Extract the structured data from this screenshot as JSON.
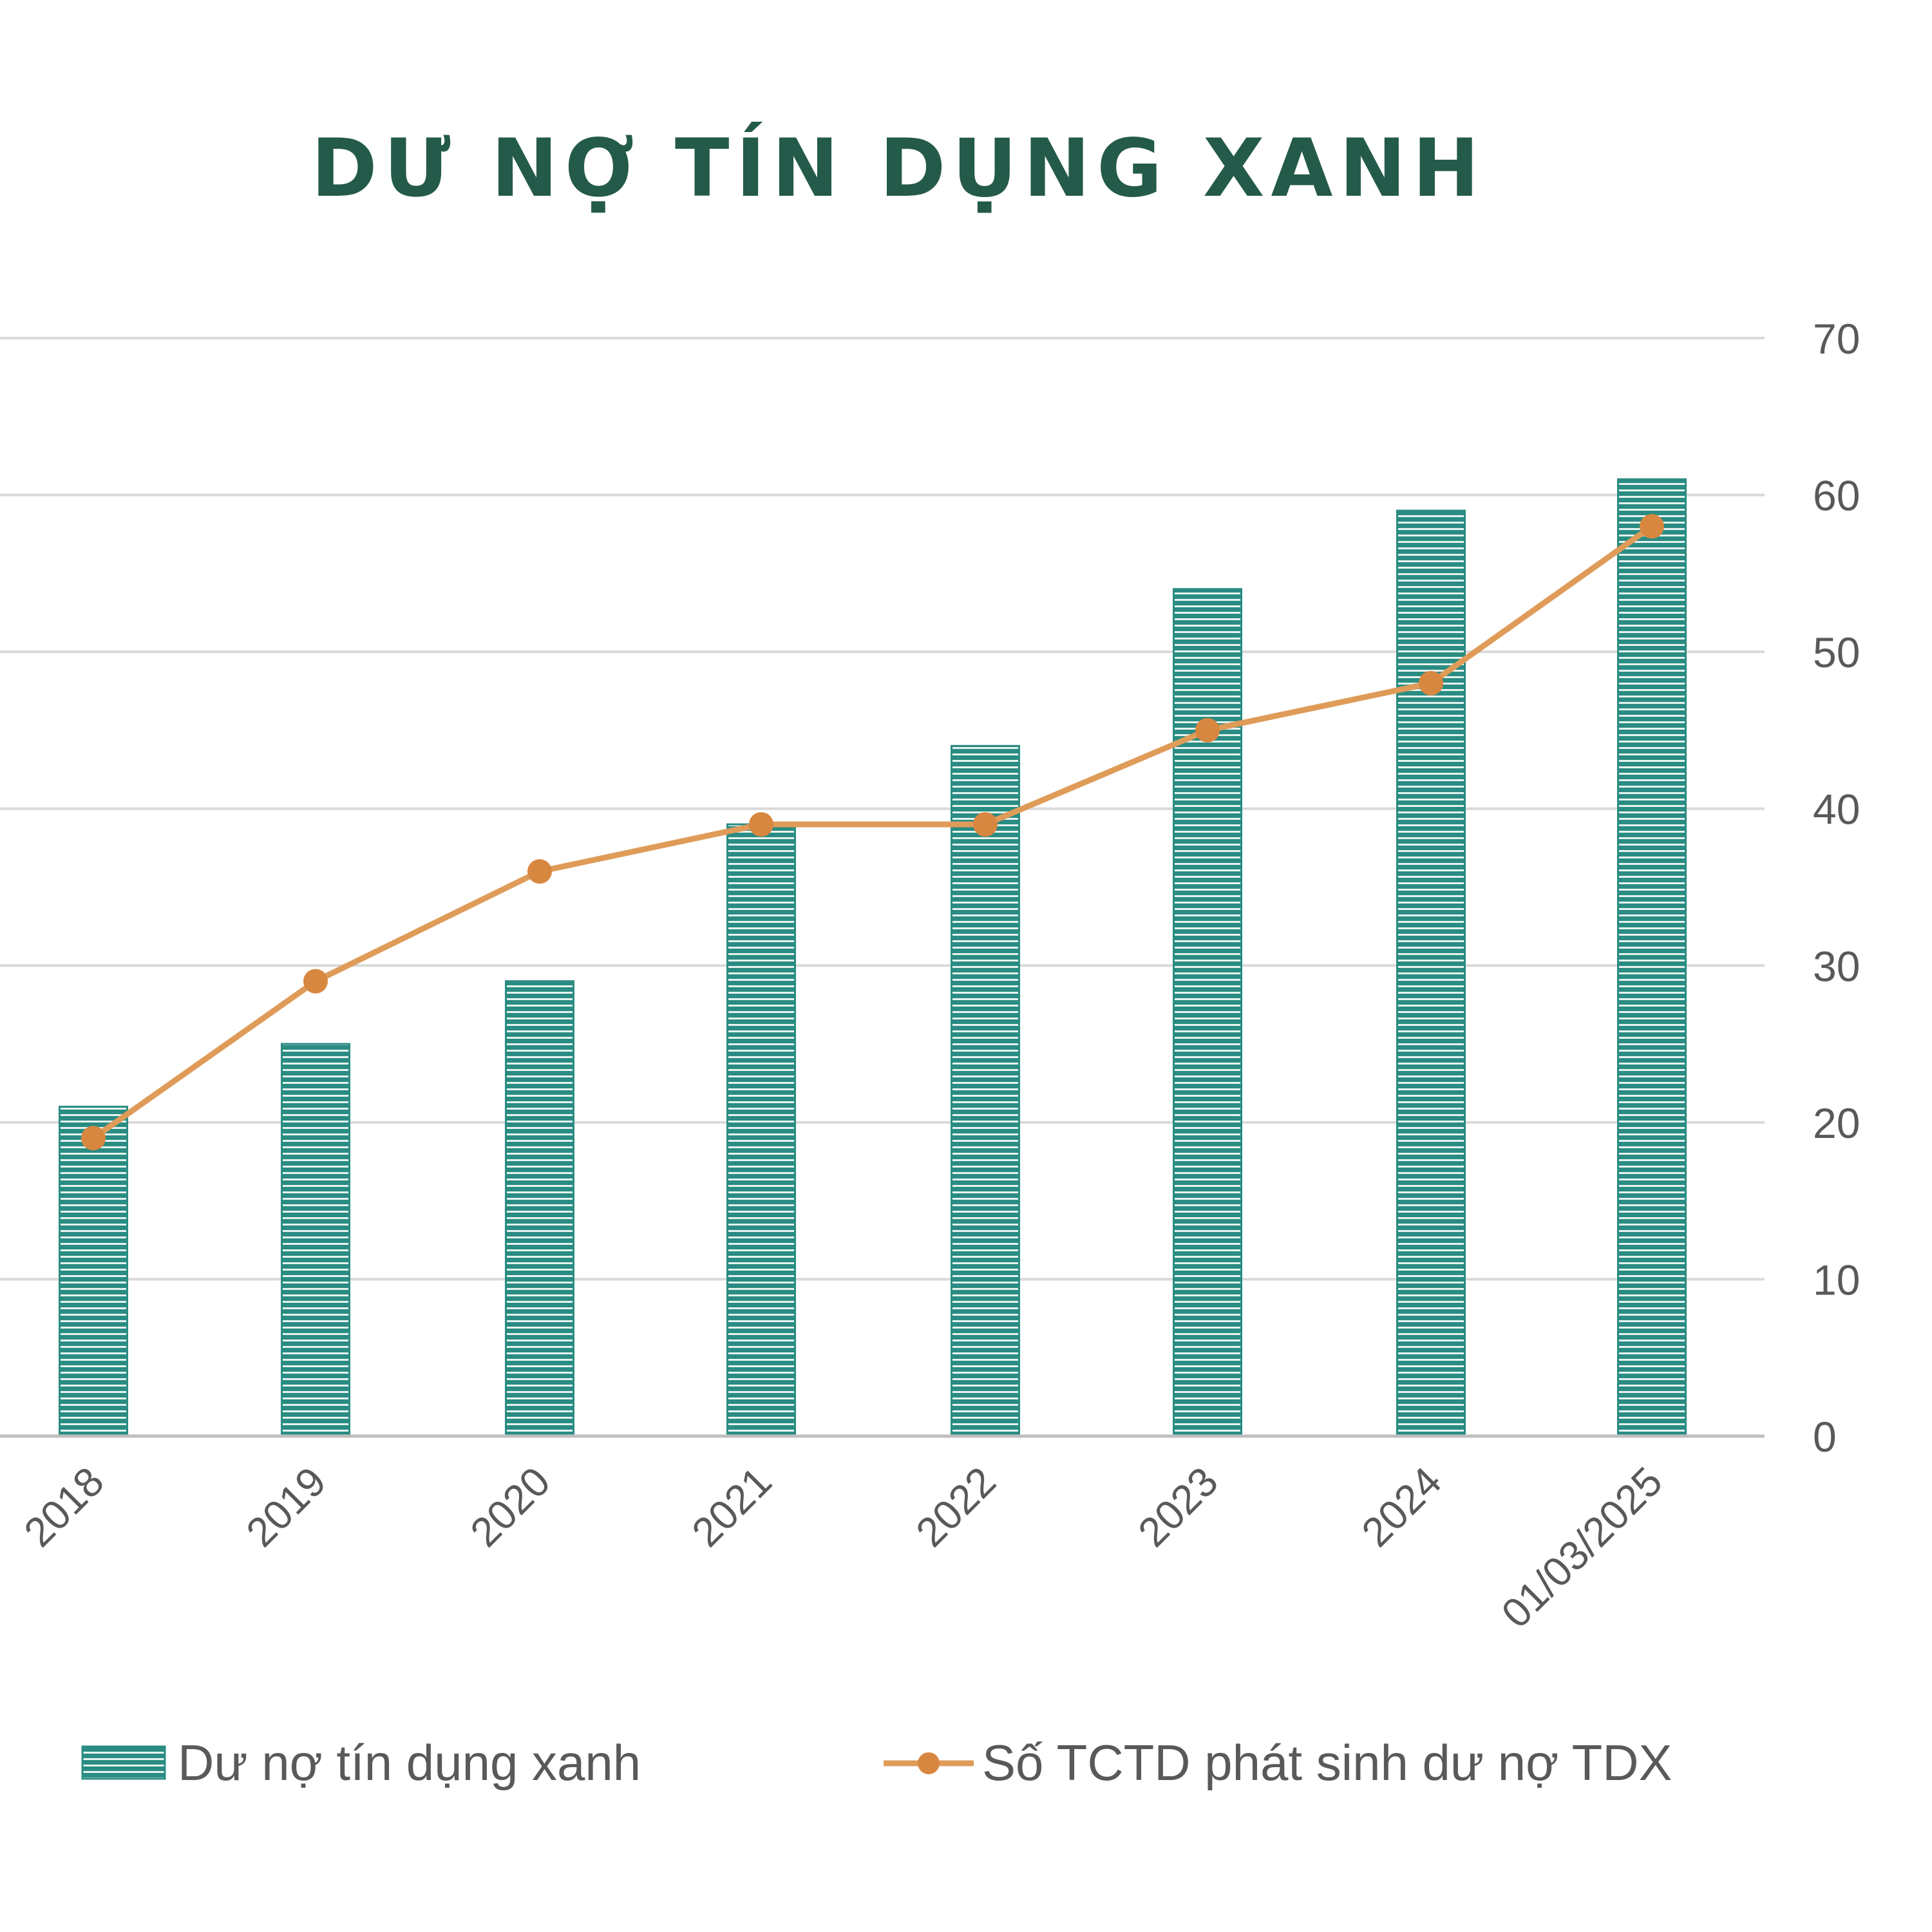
{
  "chart_data": {
    "type": "bar",
    "title": "DƯ NỢ TÍN DỤNG XANH",
    "categories": [
      "2018",
      "2019",
      "2020",
      "2021",
      "2022",
      "2023",
      "2024",
      "01/03/2025"
    ],
    "series": [
      {
        "name": "Dư nợ tín dụng xanh",
        "type": "bar",
        "values": [
          21,
          25,
          29,
          39,
          44,
          54,
          59,
          61
        ]
      },
      {
        "name": "Số TCTD phát sinh dư nợ TDX",
        "type": "line",
        "values": [
          19,
          29,
          36,
          39,
          39,
          45,
          48,
          58
        ]
      }
    ],
    "yaxis": {
      "position": "right",
      "ylim": [
        0,
        70
      ],
      "ticks": [
        "0",
        "10",
        "20",
        "30",
        "40",
        "50",
        "60",
        "70"
      ]
    },
    "grid": true,
    "legend": "bottom",
    "colors": {
      "bar": "#2a8c82",
      "bar_stripe": "#e6f3f0",
      "line": "#df9b58",
      "marker": "#d88740",
      "grid": "#d9d9d9",
      "axis": "#bfbfbf",
      "tick_text": "#595959",
      "title": "#245a4a"
    }
  }
}
